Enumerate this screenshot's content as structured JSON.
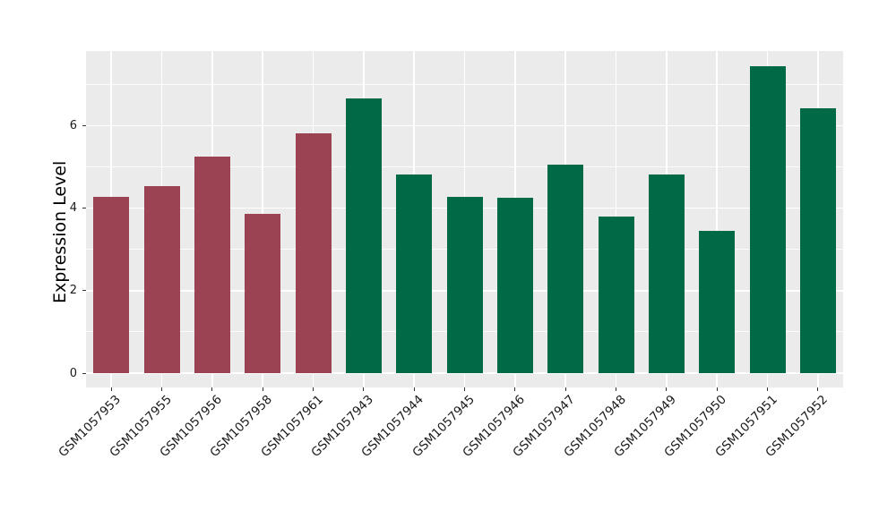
{
  "chart_data": {
    "type": "bar",
    "title": "",
    "xlabel": "",
    "ylabel": "Expression Level",
    "categories": [
      "GSM1057953",
      "GSM1057955",
      "GSM1057956",
      "GSM1057958",
      "GSM1057961",
      "GSM1057943",
      "GSM1057944",
      "GSM1057945",
      "GSM1057946",
      "GSM1057947",
      "GSM1057948",
      "GSM1057949",
      "GSM1057950",
      "GSM1057951",
      "GSM1057952"
    ],
    "values": [
      4.27,
      4.53,
      5.25,
      3.87,
      5.82,
      6.67,
      4.82,
      4.27,
      4.25,
      5.06,
      3.8,
      4.82,
      3.45,
      7.44,
      6.41
    ],
    "groups": [
      "group1",
      "group1",
      "group1",
      "group1",
      "group1",
      "group2",
      "group2",
      "group2",
      "group2",
      "group2",
      "group2",
      "group2",
      "group2",
      "group2",
      "group2"
    ],
    "group_colors": {
      "group1": "#9C4353",
      "group2": "#006946"
    },
    "yticks": [
      0,
      2,
      4,
      6
    ],
    "minor_yticks": [
      1,
      3,
      5,
      7
    ],
    "ylim": [
      0,
      7.81
    ],
    "grid": true,
    "legend_position": "none",
    "panel_bg": "#EBEBEB",
    "grid_color": "#FFFFFF",
    "text_color": "#1A1A1A"
  }
}
